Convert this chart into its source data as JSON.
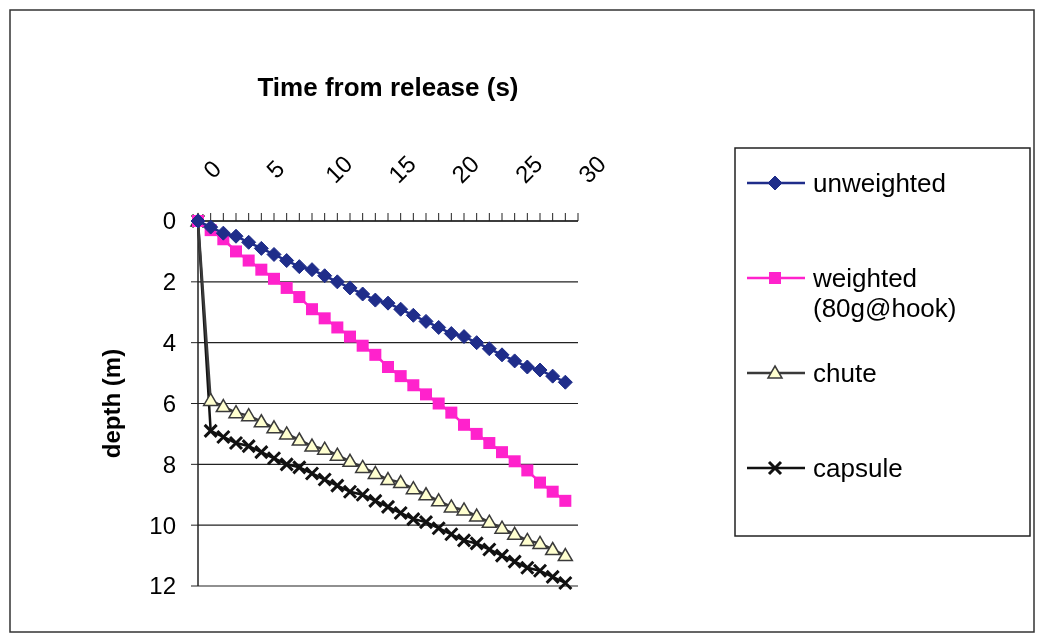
{
  "chart_data": {
    "type": "line",
    "title": "Time from release (s)",
    "ylabel": "depth (m)",
    "x": [
      0,
      1,
      2,
      3,
      4,
      5,
      6,
      7,
      8,
      9,
      10,
      11,
      12,
      13,
      14,
      15,
      16,
      17,
      18,
      19,
      20,
      21,
      22,
      23,
      24,
      25,
      26,
      27,
      28,
      29
    ],
    "series": [
      {
        "name": "unweighted",
        "color": "#1f2d8a",
        "marker": "diamond",
        "values": [
          0,
          0.2,
          0.4,
          0.5,
          0.7,
          0.9,
          1.1,
          1.3,
          1.5,
          1.6,
          1.8,
          2.0,
          2.2,
          2.4,
          2.6,
          2.7,
          2.9,
          3.1,
          3.3,
          3.5,
          3.7,
          3.8,
          4.0,
          4.2,
          4.4,
          4.6,
          4.8,
          4.9,
          5.1,
          5.3
        ]
      },
      {
        "name": "weighted\n(80g@hook)",
        "color": "#ff22cc",
        "marker": "square",
        "values": [
          0,
          0.3,
          0.6,
          1.0,
          1.3,
          1.6,
          1.9,
          2.2,
          2.5,
          2.9,
          3.2,
          3.5,
          3.8,
          4.1,
          4.4,
          4.8,
          5.1,
          5.4,
          5.7,
          6.0,
          6.3,
          6.7,
          7.0,
          7.3,
          7.6,
          7.9,
          8.2,
          8.6,
          8.9,
          9.2
        ]
      },
      {
        "name": "chute",
        "color": "#3a3a3a",
        "marker": "triangle",
        "values": [
          0,
          5.9,
          6.1,
          6.3,
          6.4,
          6.6,
          6.8,
          7.0,
          7.2,
          7.4,
          7.5,
          7.7,
          7.9,
          8.1,
          8.3,
          8.5,
          8.6,
          8.8,
          9.0,
          9.2,
          9.4,
          9.5,
          9.7,
          9.9,
          10.1,
          10.3,
          10.5,
          10.6,
          10.8,
          11.0
        ]
      },
      {
        "name": "capsule",
        "color": "#111111",
        "marker": "cross",
        "values": [
          0,
          6.9,
          7.1,
          7.3,
          7.4,
          7.6,
          7.8,
          8.0,
          8.1,
          8.3,
          8.5,
          8.7,
          8.9,
          9.0,
          9.2,
          9.4,
          9.6,
          9.8,
          9.9,
          10.1,
          10.3,
          10.5,
          10.6,
          10.8,
          11.0,
          11.2,
          11.4,
          11.5,
          11.7,
          11.9
        ]
      }
    ],
    "xlim": [
      0,
      30
    ],
    "xticks": [
      0,
      {
        "value": 1,
        "label": null
      },
      {
        "value": 2,
        "label": null
      },
      {
        "value": 3,
        "label": null
      },
      {
        "value": 4,
        "label": null
      },
      5,
      {
        "value": 6,
        "label": null
      },
      {
        "value": 7,
        "label": null
      },
      {
        "value": 8,
        "label": null
      },
      {
        "value": 9,
        "label": null
      },
      10,
      {
        "value": 11,
        "label": null
      },
      {
        "value": 12,
        "label": null
      },
      {
        "value": 13,
        "label": null
      },
      {
        "value": 14,
        "label": null
      },
      15,
      {
        "value": 16,
        "label": null
      },
      {
        "value": 17,
        "label": null
      },
      {
        "value": 18,
        "label": null
      },
      {
        "value": 19,
        "label": null
      },
      20,
      {
        "value": 21,
        "label": null
      },
      {
        "value": 22,
        "label": null
      },
      {
        "value": 23,
        "label": null
      },
      {
        "value": 24,
        "label": null
      },
      25,
      {
        "value": 26,
        "label": null
      },
      {
        "value": 27,
        "label": null
      },
      {
        "value": 28,
        "label": null
      },
      {
        "value": 29,
        "label": null
      },
      30
    ],
    "ylim": [
      12,
      0
    ],
    "yticks": [
      0,
      2,
      4,
      6,
      8,
      10,
      12
    ],
    "grid": "y",
    "legend": "right"
  }
}
